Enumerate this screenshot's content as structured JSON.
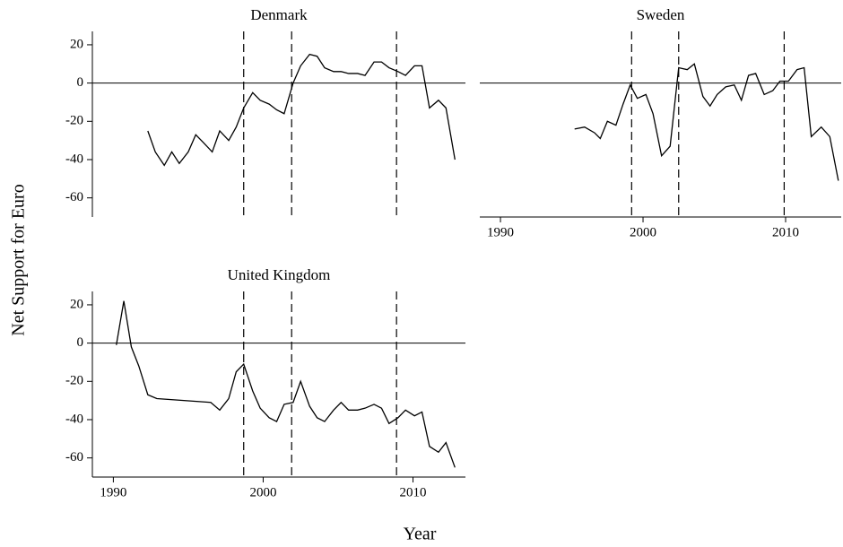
{
  "xlabel": "Year",
  "ylabel": "Net Support for Euro",
  "chart_data": [
    {
      "type": "line",
      "title": "Denmark",
      "x": [
        1992.3,
        1992.8,
        1993.4,
        1993.9,
        1994.4,
        1995.0,
        1995.5,
        1996.0,
        1996.6,
        1997.1,
        1997.7,
        1998.2,
        1998.7,
        1999.3,
        1999.8,
        2000.4,
        2000.9,
        2001.4,
        2002.0,
        2002.5,
        2003.1,
        2003.6,
        2004.1,
        2004.7,
        2005.2,
        2005.7,
        2006.3,
        2006.8,
        2007.4,
        2007.9,
        2008.4,
        2009.0,
        2009.5,
        2010.1,
        2010.6,
        2011.1,
        2011.7,
        2012.2,
        2012.8
      ],
      "values": [
        -25,
        -36,
        -43,
        -36,
        -42,
        -36,
        -27,
        -31,
        -36,
        -25,
        -30,
        -23,
        -13,
        -5,
        -9,
        -11,
        -14,
        -16,
        0,
        9,
        15,
        14,
        8,
        6,
        6,
        5,
        5,
        4,
        11,
        11,
        8,
        6,
        4,
        9,
        9,
        -13,
        -9,
        -13,
        -40
      ],
      "color": "#000000",
      "xlim": [
        1988.6,
        2013.5
      ],
      "ylim": [
        -70,
        27
      ],
      "yticks": [
        20,
        0,
        -20,
        -40,
        -60
      ],
      "hline": 0,
      "vlines": [
        1998.7,
        2001.9,
        2008.9
      ]
    },
    {
      "type": "line",
      "title": "Sweden",
      "x": [
        1995.2,
        1995.9,
        1996.6,
        1997.0,
        1997.5,
        1998.1,
        1998.6,
        1999.1,
        1999.6,
        2000.2,
        2000.7,
        2001.3,
        2001.9,
        2002.5,
        2003.1,
        2003.6,
        2004.2,
        2004.7,
        2005.2,
        2005.8,
        2006.4,
        2006.9,
        2007.4,
        2007.9,
        2008.5,
        2009.1,
        2009.6,
        2010.2,
        2010.8,
        2011.3,
        2011.8,
        2012.5,
        2013.1,
        2013.7
      ],
      "values": [
        -24,
        -23,
        -26,
        -29,
        -20,
        -22,
        -11,
        -1,
        -8,
        -6,
        -16,
        -38,
        -33,
        8,
        7,
        10,
        -7,
        -12,
        -6,
        -2,
        -1,
        -9,
        4,
        5,
        -6,
        -4,
        1,
        1,
        7,
        8,
        -28,
        -23,
        -28,
        -51
      ],
      "color": "#000000",
      "xlim": [
        1988.55,
        2013.9
      ],
      "ylim": [
        -70,
        27
      ],
      "xticks": [
        1990,
        2000,
        2010
      ],
      "hline": 0,
      "vlines": [
        1999.2,
        2002.5,
        2009.9
      ]
    },
    {
      "type": "line",
      "title": "United Kingdom",
      "x": [
        1990.2,
        1990.7,
        1991.2,
        1991.7,
        1992.3,
        1992.9,
        1996.5,
        1997.1,
        1997.7,
        1998.2,
        1998.7,
        1999.3,
        1999.8,
        2000.4,
        2000.9,
        2001.4,
        2002.0,
        2002.5,
        2003.1,
        2003.6,
        2004.1,
        2004.7,
        2005.2,
        2005.7,
        2006.3,
        2006.8,
        2007.4,
        2007.9,
        2008.4,
        2009.0,
        2009.5,
        2010.1,
        2010.6,
        2011.1,
        2011.7,
        2012.2,
        2012.8
      ],
      "values": [
        -1,
        22,
        -2,
        -12,
        -27,
        -29,
        -31,
        -35,
        -29,
        -15,
        -11,
        -25,
        -34,
        -39,
        -41,
        -32,
        -31,
        -20,
        -33,
        -39,
        -41,
        -35,
        -31,
        -35,
        -35,
        -34,
        -32,
        -34,
        -42,
        -39,
        -35,
        -38,
        -36,
        -54,
        -57,
        -52,
        -65
      ],
      "color": "#000000",
      "xlim": [
        1988.6,
        2013.5
      ],
      "ylim": [
        -70,
        27
      ],
      "yticks": [
        20,
        0,
        -20,
        -40,
        -60
      ],
      "xticks": [
        1990,
        2000,
        2010
      ],
      "hline": 0,
      "vlines": [
        1998.7,
        2001.9,
        2008.9
      ]
    }
  ]
}
